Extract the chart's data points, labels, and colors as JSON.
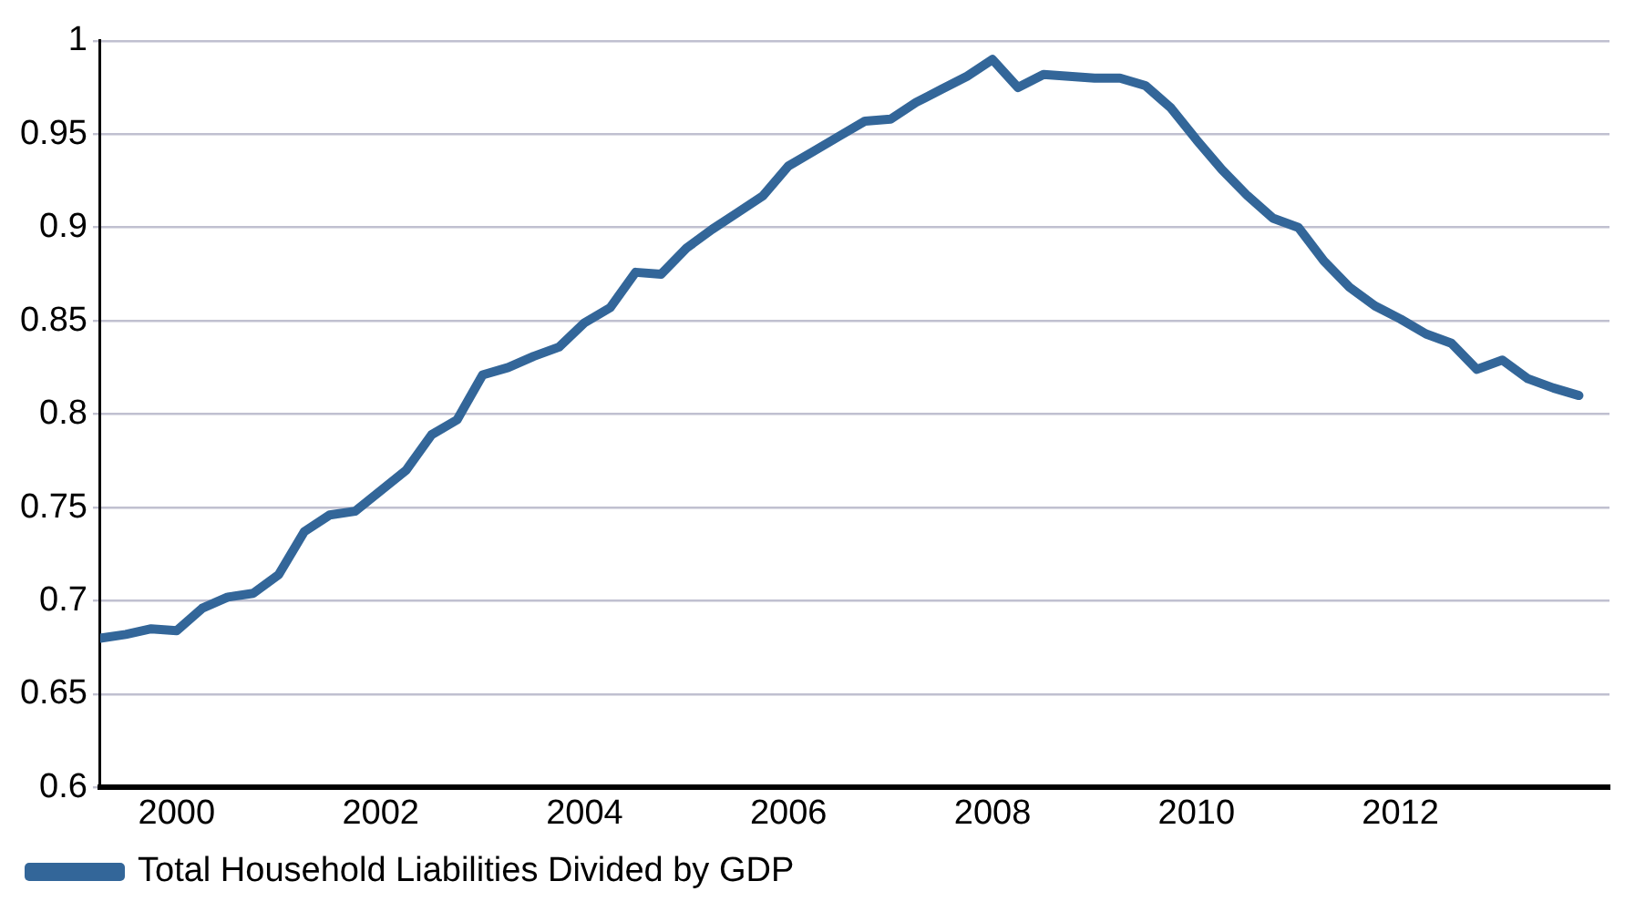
{
  "chart_data": {
    "type": "line",
    "x": [
      1999.25,
      1999.5,
      1999.75,
      2000,
      2000.25,
      2000.5,
      2000.75,
      2001,
      2001.25,
      2001.5,
      2001.75,
      2002,
      2002.25,
      2002.5,
      2002.75,
      2003,
      2003.25,
      2003.5,
      2003.75,
      2004,
      2004.25,
      2004.5,
      2004.75,
      2005,
      2005.25,
      2005.5,
      2005.75,
      2006,
      2006.25,
      2006.5,
      2006.75,
      2007,
      2007.25,
      2007.5,
      2007.75,
      2008,
      2008.25,
      2008.5,
      2008.75,
      2009,
      2009.25,
      2009.5,
      2009.75,
      2010,
      2010.25,
      2010.5,
      2010.75,
      2011,
      2011.25,
      2011.5,
      2011.75,
      2012,
      2012.25,
      2012.5,
      2012.75,
      2013,
      2013.25,
      2013.5,
      2013.75
    ],
    "series": [
      {
        "name": "Total Household Liabilities Divided by GDP",
        "color": "#336699",
        "values": [
          0.68,
          0.682,
          0.685,
          0.684,
          0.696,
          0.702,
          0.704,
          0.714,
          0.737,
          0.746,
          0.748,
          0.759,
          0.77,
          0.789,
          0.797,
          0.821,
          0.825,
          0.831,
          0.836,
          0.849,
          0.857,
          0.876,
          0.875,
          0.889,
          0.899,
          0.908,
          0.917,
          0.933,
          0.941,
          0.949,
          0.957,
          0.958,
          0.967,
          0.974,
          0.981,
          0.99,
          0.975,
          0.982,
          0.981,
          0.98,
          0.98,
          0.976,
          0.964,
          0.947,
          0.931,
          0.917,
          0.905,
          0.9,
          0.882,
          0.868,
          0.858,
          0.851,
          0.843,
          0.838,
          0.824,
          0.829,
          0.819,
          0.814,
          0.81
        ]
      }
    ],
    "xlim": [
      1999.25,
      2014.05
    ],
    "xticks": [
      2000,
      2002,
      2004,
      2006,
      2008,
      2010,
      2012
    ],
    "ylim": [
      0.6,
      1
    ],
    "yticks": [
      0.6,
      0.65,
      0.7,
      0.75,
      0.8,
      0.85,
      0.9,
      0.95,
      1
    ],
    "grid": "y",
    "legend": "bottom left",
    "marker": "none",
    "line_style": "solid"
  }
}
